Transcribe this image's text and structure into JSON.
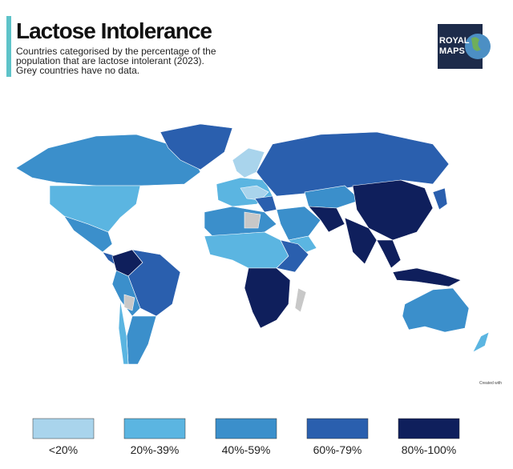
{
  "header": {
    "title": "Lactose Intolerance",
    "subtitle": [
      "Countries categorised by the percentage of the",
      "population that are lactose intolerant (2023).",
      "Grey countries have no data."
    ]
  },
  "logo": [
    "ROYAL",
    "MAPS"
  ],
  "credit": "Created with",
  "legend": [
    {
      "label": "<20%",
      "color": "#a9d4ec"
    },
    {
      "label": "20%-39%",
      "color": "#5bb5e1"
    },
    {
      "label": "40%-59%",
      "color": "#3b8fcb"
    },
    {
      "label": "60%-79%",
      "color": "#2a5fae"
    },
    {
      "label": "80%-100%",
      "color": "#0f1f5c"
    }
  ]
}
